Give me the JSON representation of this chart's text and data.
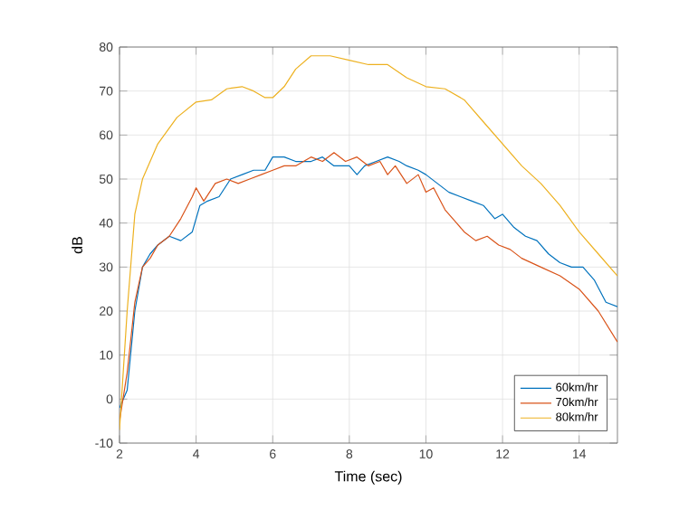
{
  "chart_data": {
    "type": "line",
    "xlabel": "Time (sec)",
    "ylabel": "dB",
    "xlim": [
      2,
      15
    ],
    "ylim": [
      -10,
      80
    ],
    "xticks": [
      2,
      4,
      6,
      8,
      10,
      12,
      14
    ],
    "yticks": [
      -10,
      0,
      10,
      20,
      30,
      40,
      50,
      60,
      70,
      80
    ],
    "grid": true,
    "legend": "bottom right",
    "marker": "none",
    "line_style": "solid",
    "series": [
      {
        "name": "60km/hr",
        "color": "#0072bd",
        "x": [
          2,
          2.2,
          2.4,
          2.6,
          2.8,
          3,
          3.3,
          3.6,
          3.9,
          4.1,
          4.3,
          4.6,
          4.9,
          5.2,
          5.5,
          5.8,
          6,
          6.3,
          6.6,
          7,
          7.3,
          7.6,
          8,
          8.2,
          8.4,
          8.7,
          9,
          9.3,
          9.5,
          9.8,
          10,
          10.3,
          10.6,
          10.9,
          11.2,
          11.5,
          11.8,
          12,
          12.3,
          12.6,
          12.9,
          13.2,
          13.5,
          13.8,
          14.1,
          14.4,
          14.7,
          15
        ],
        "values": [
          -2,
          2,
          20,
          30,
          33,
          35,
          37,
          36,
          38,
          44,
          45,
          46,
          50,
          51,
          52,
          52,
          55,
          55,
          54,
          54,
          55,
          53,
          53,
          51,
          53,
          54,
          55,
          54,
          53,
          52,
          51,
          49,
          47,
          46,
          45,
          44,
          41,
          42,
          39,
          37,
          36,
          33,
          31,
          30,
          30,
          27,
          22,
          21
        ]
      },
      {
        "name": "70km/hr",
        "color": "#d95319",
        "x": [
          2,
          2.2,
          2.4,
          2.6,
          2.8,
          3,
          3.3,
          3.6,
          3.9,
          4,
          4.2,
          4.5,
          4.8,
          5.1,
          5.4,
          5.7,
          6,
          6.3,
          6.6,
          7,
          7.3,
          7.6,
          7.9,
          8.2,
          8.5,
          8.8,
          9,
          9.2,
          9.5,
          9.8,
          10,
          10.2,
          10.5,
          10.8,
          11,
          11.3,
          11.6,
          11.9,
          12.2,
          12.5,
          13,
          13.5,
          14,
          14.5,
          15
        ],
        "values": [
          -5,
          6,
          22,
          30,
          32,
          35,
          37,
          41,
          46,
          48,
          45,
          49,
          50,
          49,
          50,
          51,
          52,
          53,
          53,
          55,
          54,
          56,
          54,
          55,
          53,
          54,
          51,
          53,
          49,
          51,
          47,
          48,
          43,
          40,
          38,
          36,
          37,
          35,
          34,
          32,
          30,
          28,
          25,
          20,
          13
        ]
      },
      {
        "name": "80km/hr",
        "color": "#edb120",
        "x": [
          2,
          2.2,
          2.4,
          2.6,
          3,
          3.5,
          4,
          4.4,
          4.8,
          5.2,
          5.5,
          5.8,
          6,
          6.3,
          6.6,
          7,
          7.5,
          8,
          8.5,
          9,
          9.5,
          10,
          10.5,
          11,
          11.5,
          12,
          12.5,
          13,
          13.5,
          14,
          14.5,
          15
        ],
        "values": [
          -7,
          20,
          42,
          50,
          58,
          64,
          67.5,
          68,
          70.5,
          71,
          70,
          68.5,
          68.5,
          71,
          75,
          78,
          78,
          77,
          76,
          76,
          73,
          71,
          70.5,
          68,
          63,
          58,
          53,
          49,
          44,
          38,
          33,
          28
        ]
      }
    ]
  }
}
